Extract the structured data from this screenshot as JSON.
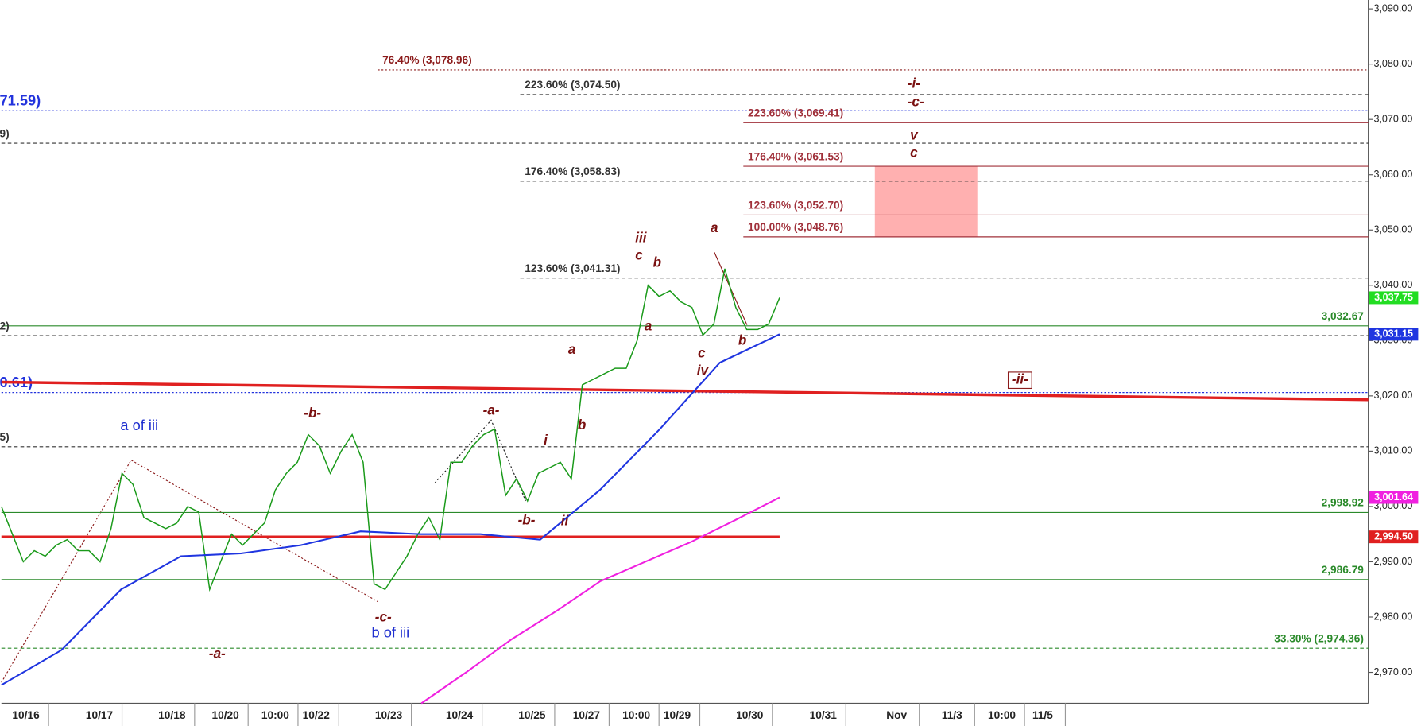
{
  "chart_data": {
    "type": "line",
    "ylim": [
      2964.4,
      3091.6
    ],
    "yticks": [
      {
        "value": 3090,
        "label": "3,090.00"
      },
      {
        "value": 3080,
        "label": "3,080.00"
      },
      {
        "value": 3070,
        "label": "3,070.00"
      },
      {
        "value": 3060,
        "label": "3,060.00"
      },
      {
        "value": 3050,
        "label": "3,050.00"
      },
      {
        "value": 3040,
        "label": "3,040.00"
      },
      {
        "value": 3030,
        "label": "3,030.00"
      },
      {
        "value": 3020,
        "label": "3,020.00"
      },
      {
        "value": 3010,
        "label": "3,010.00"
      },
      {
        "value": 3000,
        "label": "3,000.00"
      },
      {
        "value": 2990,
        "label": "2,990.00"
      },
      {
        "value": 2980,
        "label": "2,980.00"
      },
      {
        "value": 2970,
        "label": "2,970.00"
      }
    ],
    "x_labels": [
      "10/16",
      "10/17",
      "10/18",
      "10/20",
      "10:00",
      "10/22",
      "10/23",
      "10/24",
      "10/25",
      "10/27",
      "10:00",
      "10/29",
      "10/30",
      "10/31",
      "Nov",
      "11/3",
      "10:00",
      "11/5"
    ],
    "series": [
      {
        "color": "#1a9a1a",
        "values": [
          3000,
          2995,
          2990,
          2992,
          2991,
          2993,
          2994,
          2992,
          2992,
          2990,
          2996,
          3006,
          3004,
          2998,
          2997,
          2996,
          2997,
          3000,
          2999,
          2985,
          2990,
          2995,
          2993,
          2995,
          2997,
          3003,
          3006,
          3008,
          3013,
          3011,
          3006,
          3010,
          3013,
          3008,
          2986,
          2985,
          2988,
          2991,
          2995,
          2998,
          2994,
          3008,
          3008,
          3011,
          3013,
          3014,
          3002,
          3005,
          3001,
          3006,
          3007,
          3008,
          3005,
          3022,
          3023,
          3024,
          3025,
          3025,
          3030,
          3040,
          3038,
          3039,
          3037,
          3036,
          3031,
          3033,
          3043,
          3036,
          3032,
          3032,
          3033,
          3037.75
        ]
      },
      {
        "color": "#1f35e0",
        "values": [
          2967.7,
          2974,
          2985,
          2991,
          2991.5,
          2993,
          2995.5,
          2995,
          2995,
          2994,
          3003,
          3014,
          3026,
          3031.15
        ]
      },
      {
        "color": "#f020e0",
        "values": [
          2964.4,
          2970,
          2975.9,
          2981,
          2986.5,
          2990,
          2993.5,
          2997.5,
          3001.64
        ]
      }
    ],
    "trendlines": [
      {
        "color": "#e02020",
        "values": [
          2994.5,
          2994.5
        ]
      },
      {
        "color": "#e02020",
        "values": [
          3022.5,
          3019.3
        ]
      }
    ],
    "price_tags": [
      {
        "label": "3,037.75",
        "value": 3037.75,
        "color": "#22dd22"
      },
      {
        "label": "3,031.15",
        "value": 3031.15,
        "color": "#1f35e0"
      },
      {
        "label": "3,001.64",
        "value": 3001.64,
        "color": "#f020e0"
      },
      {
        "label": "2,994.50",
        "value": 2994.5,
        "color": "#e02020"
      }
    ],
    "levels": [
      {
        "label": "76.40% (3,078.96)",
        "value": 3078.96,
        "color": "#8b1a1a",
        "style": "dotted"
      },
      {
        "label": "223.60% (3,074.50)",
        "value": 3074.5,
        "color": "#333333",
        "style": "dashed"
      },
      {
        "label": "71.59)",
        "value": 3071.59,
        "color": "#2233dd",
        "style": "dotted"
      },
      {
        "label": "9)",
        "value": 3065.7,
        "color": "#333333",
        "style": "dashed"
      },
      {
        "label": "223.60% (3,069.41)",
        "value": 3069.41,
        "color": "#a0303a",
        "style": "solid"
      },
      {
        "label": "176.40% (3,061.53)",
        "value": 3061.53,
        "color": "#a0303a",
        "style": "solid"
      },
      {
        "label": "176.40% (3,058.83)",
        "value": 3058.83,
        "color": "#333333",
        "style": "dashed"
      },
      {
        "label": "123.60% (3,052.70)",
        "value": 3052.7,
        "color": "#a0303a",
        "style": "solid"
      },
      {
        "label": "100.00% (3,048.76)",
        "value": 3048.76,
        "color": "#a0303a",
        "style": "solid"
      },
      {
        "label": "123.60% (3,041.31)",
        "value": 3041.31,
        "color": "#333333",
        "style": "dashed"
      },
      {
        "label": "3,032.67",
        "value": 3032.67,
        "color": "#2a8a2a",
        "style": "solid"
      },
      {
        "label": "2)",
        "value": 3030.9,
        "color": "#333333",
        "style": "dashed"
      },
      {
        "label": "0.61)",
        "value": 3020.61,
        "color": "#2233dd",
        "style": "dotted"
      },
      {
        "label": "5)",
        "value": 3010.8,
        "color": "#333333",
        "style": "dashed"
      },
      {
        "label": "2,998.92",
        "value": 2998.92,
        "color": "#2a8a2a",
        "style": "solid"
      },
      {
        "label": "2,986.79",
        "value": 2986.79,
        "color": "#2a8a2a",
        "style": "solid"
      },
      {
        "label": "33.30% (2,974.36)",
        "value": 2974.36,
        "color": "#2a8a2a",
        "style": "dashed"
      }
    ],
    "target_zone": {
      "values": [
        3061.53,
        3048.76
      ],
      "color": "#ffb0b0"
    },
    "annotations": [
      "a of iii",
      "-b-",
      "-a-",
      "i",
      "a",
      "b",
      "iii",
      "c",
      "b",
      "a",
      "a",
      "c",
      "iv",
      "b",
      "-b-",
      "ii",
      "-a-",
      "-c-",
      "b of iii",
      "-i-",
      "-c-",
      "v",
      "c",
      "-ii-"
    ]
  }
}
